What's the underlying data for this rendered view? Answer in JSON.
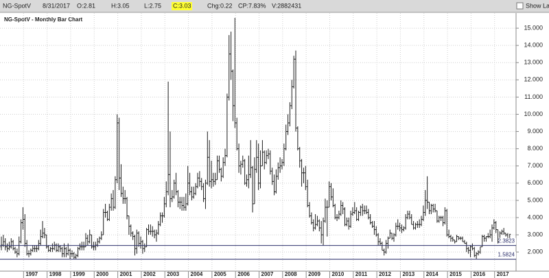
{
  "header": {
    "symbol": "NG-SpotV",
    "date": "8/31/2017",
    "open": "O:2.81",
    "high": "H:3.05",
    "low": "L:2.75",
    "close": "C:3.03",
    "change": "Chg:0.22",
    "change_pct": "CP:7.83%",
    "volume": "V:2882431",
    "checkbox": "Show La"
  },
  "chart_data": {
    "type": "ohlc",
    "title": "NG-SpotV - Monthly Bar Chart",
    "color": "#1a1a1a",
    "grid": true,
    "ylim": [
      0.89,
      15.88
    ],
    "yticks": [
      {
        "value": 2,
        "label": "2.000"
      },
      {
        "value": 3,
        "label": "3.000"
      },
      {
        "value": 4,
        "label": "4.000"
      },
      {
        "value": 5,
        "label": "5.000"
      },
      {
        "value": 6,
        "label": "6.000"
      },
      {
        "value": 7,
        "label": "7.000"
      },
      {
        "value": 8,
        "label": "8.000"
      },
      {
        "value": 9,
        "label": "9.000"
      },
      {
        "value": 10,
        "label": "10.000"
      },
      {
        "value": 11,
        "label": "11.000"
      },
      {
        "value": 12,
        "label": "12.000"
      },
      {
        "value": 13,
        "label": "13.000"
      },
      {
        "value": 14,
        "label": "14.000"
      },
      {
        "value": 15,
        "label": "15.000"
      }
    ],
    "hlines": [
      2.3823,
      1.5824
    ],
    "categories": [
      null,
      null,
      null,
      null,
      null,
      null,
      null,
      null,
      null,
      null,
      null,
      null,
      "1997",
      null,
      null,
      null,
      null,
      null,
      null,
      null,
      null,
      null,
      null,
      null,
      "1998",
      null,
      null,
      null,
      null,
      null,
      null,
      null,
      null,
      null,
      null,
      null,
      "1999",
      null,
      null,
      null,
      null,
      null,
      null,
      null,
      null,
      null,
      null,
      null,
      "2000",
      null,
      null,
      null,
      null,
      null,
      null,
      null,
      null,
      null,
      null,
      null,
      "2001",
      null,
      null,
      null,
      null,
      null,
      null,
      null,
      null,
      null,
      null,
      null,
      "2002",
      null,
      null,
      null,
      null,
      null,
      null,
      null,
      null,
      null,
      null,
      null,
      "2003",
      null,
      null,
      null,
      null,
      null,
      null,
      null,
      null,
      null,
      null,
      null,
      "2004",
      null,
      null,
      null,
      null,
      null,
      null,
      null,
      null,
      null,
      null,
      null,
      "2005",
      null,
      null,
      null,
      null,
      null,
      null,
      null,
      null,
      null,
      null,
      null,
      "2006",
      null,
      null,
      null,
      null,
      null,
      null,
      null,
      null,
      null,
      null,
      null,
      "2007",
      null,
      null,
      null,
      null,
      null,
      null,
      null,
      null,
      null,
      null,
      null,
      "2008",
      null,
      null,
      null,
      null,
      null,
      null,
      null,
      null,
      null,
      null,
      null,
      "2009",
      null,
      null,
      null,
      null,
      null,
      null,
      null,
      null,
      null,
      null,
      null,
      "2010",
      null,
      null,
      null,
      null,
      null,
      null,
      null,
      null,
      null,
      null,
      null,
      "2011",
      null,
      null,
      null,
      null,
      null,
      null,
      null,
      null,
      null,
      null,
      null,
      "2012",
      null,
      null,
      null,
      null,
      null,
      null,
      null,
      null,
      null,
      null,
      null,
      "2013",
      null,
      null,
      null,
      null,
      null,
      null,
      null,
      null,
      null,
      null,
      null,
      "2014",
      null,
      null,
      null,
      null,
      null,
      null,
      null,
      null,
      null,
      null,
      null,
      "2015",
      null,
      null,
      null,
      null,
      null,
      null,
      null,
      null,
      null,
      null,
      null,
      "2016",
      null,
      null,
      null,
      null,
      null,
      null,
      null,
      null,
      null,
      null,
      null,
      "2017",
      null,
      null,
      null,
      null,
      null,
      null,
      null
    ],
    "open": [
      2.3,
      2.4,
      2.6,
      2.3,
      2.2,
      2.3,
      2.6,
      2.2,
      2.0,
      1.9,
      2.6,
      3.7,
      3.9,
      2.5,
      1.9,
      1.9,
      2.1,
      2.2,
      2.2,
      2.2,
      2.5,
      2.9,
      3.1,
      3.0,
      2.3,
      2.1,
      2.2,
      2.2,
      2.4,
      2.1,
      2.3,
      2.2,
      1.9,
      2.2,
      1.9,
      2.1,
      1.9,
      1.9,
      1.7,
      1.8,
      2.2,
      2.3,
      2.3,
      2.3,
      2.8,
      2.6,
      3.0,
      2.3,
      2.3,
      2.4,
      2.6,
      2.8,
      3.0,
      4.3,
      4.3,
      3.9,
      4.6,
      5.1,
      4.6,
      6.2,
      9.5,
      6.3,
      5.4,
      5.1,
      5.1,
      4.1,
      3.5,
      3.1,
      2.9,
      2.2,
      3.1,
      2.5,
      2.6,
      2.2,
      2.3,
      3.3,
      3.2,
      3.2,
      3.2,
      3.0,
      3.1,
      3.6,
      4.1,
      4.1,
      4.8,
      5.5,
      6.5,
      5.1,
      5.2,
      6.0,
      5.5,
      4.9,
      4.9,
      4.7,
      4.6,
      4.8,
      6.0,
      5.5,
      5.2,
      5.4,
      5.8,
      6.3,
      6.1,
      5.8,
      5.1,
      6.0,
      7.5,
      6.1,
      6.2,
      6.1,
      6.2,
      7.3,
      6.8,
      6.4,
      7.2,
      7.6,
      11.0,
      13.5,
      12.5,
      10.5,
      9.5,
      8.0,
      7.0,
      7.1,
      7.3,
      6.0,
      6.2,
      6.5,
      6.9,
      4.8,
      6.8,
      7.5,
      6.0,
      7.0,
      7.8,
      7.2,
      7.6,
      7.7,
      6.7,
      6.1,
      5.5,
      6.4,
      6.9,
      7.0,
      7.2,
      8.0,
      9.0,
      9.5,
      10.5,
      11.6,
      13.2,
      9.2,
      8.0,
      7.3,
      6.6,
      6.6,
      5.8,
      4.7,
      4.1,
      3.7,
      3.4,
      3.6,
      3.8,
      3.4,
      3.0,
      3.8,
      4.6,
      4.6,
      5.8,
      5.2,
      4.7,
      4.0,
      4.0,
      4.2,
      4.7,
      4.5,
      3.6,
      3.8,
      3.5,
      4.2,
      4.3,
      4.4,
      3.9,
      4.3,
      4.6,
      4.4,
      4.4,
      4.3,
      4.0,
      3.7,
      3.5,
      3.3,
      3.0,
      2.6,
      2.5,
      2.1,
      2.0,
      2.5,
      2.8,
      3.1,
      2.8,
      3.0,
      3.5,
      3.5,
      3.4,
      3.3,
      3.4,
      4.0,
      4.2,
      4.0,
      3.6,
      3.4,
      3.6,
      3.6,
      3.6,
      3.9,
      4.3,
      5.0,
      4.9,
      4.4,
      4.7,
      4.5,
      4.4,
      3.8,
      4.0,
      4.0,
      3.7,
      4.4,
      3.0,
      2.9,
      2.8,
      2.7,
      2.6,
      2.9,
      2.8,
      2.8,
      2.6,
      2.5,
      2.2,
      2.1,
      2.3,
      2.2,
      1.8,
      1.9,
      2.0,
      2.3,
      2.9,
      2.8,
      2.9,
      2.9,
      3.0,
      3.4,
      3.7,
      3.3,
      2.6,
      3.1,
      3.2,
      3.1,
      3.0,
      2.81
    ],
    "high": [
      2.9,
      3.0,
      2.8,
      2.5,
      2.6,
      2.8,
      2.7,
      2.3,
      2.2,
      2.9,
      3.9,
      4.6,
      4.2,
      2.7,
      2.1,
      2.2,
      2.4,
      2.4,
      2.4,
      2.7,
      3.3,
      3.8,
      3.4,
      3.0,
      2.4,
      2.3,
      2.5,
      2.6,
      2.5,
      2.5,
      2.4,
      2.3,
      2.5,
      2.3,
      2.5,
      2.2,
      2.1,
      2.0,
      1.9,
      2.3,
      2.5,
      2.6,
      2.6,
      3.1,
      3.0,
      3.3,
      3.0,
      2.6,
      2.6,
      2.8,
      2.9,
      3.2,
      4.5,
      4.8,
      4.4,
      4.8,
      5.4,
      5.6,
      6.4,
      10.0,
      9.8,
      7.1,
      5.8,
      5.6,
      5.2,
      4.1,
      3.6,
      3.2,
      3.0,
      3.3,
      3.2,
      2.9,
      2.7,
      2.5,
      3.4,
      3.6,
      3.6,
      3.5,
      3.3,
      3.3,
      3.8,
      4.3,
      4.3,
      5.2,
      6.1,
      11.9,
      9.0,
      5.6,
      6.2,
      6.6,
      5.6,
      5.2,
      5.2,
      5.2,
      5.4,
      7.0,
      6.6,
      5.8,
      5.8,
      6.0,
      6.6,
      6.7,
      6.3,
      6.0,
      6.2,
      9.0,
      8.5,
      7.3,
      6.6,
      6.6,
      7.6,
      7.6,
      6.9,
      7.5,
      8.0,
      11.2,
      14.6,
      14.8,
      12.6,
      15.6,
      9.8,
      8.3,
      7.3,
      7.6,
      7.4,
      6.5,
      7.6,
      8.5,
      7.0,
      7.5,
      8.5,
      8.3,
      7.9,
      8.5,
      7.9,
      7.9,
      8.0,
      7.9,
      6.9,
      6.5,
      6.8,
      7.2,
      7.5,
      7.4,
      8.3,
      9.4,
      10.0,
      10.7,
      12.0,
      13.4,
      13.7,
      9.3,
      8.1,
      7.4,
      6.9,
      7.0,
      6.2,
      4.9,
      4.3,
      3.9,
      4.2,
      4.1,
      3.9,
      3.8,
      4.0,
      5.1,
      5.0,
      6.1,
      6.0,
      5.7,
      4.8,
      4.2,
      4.4,
      5.0,
      4.9,
      4.6,
      4.0,
      4.0,
      4.4,
      4.6,
      4.9,
      4.6,
      4.4,
      4.7,
      4.8,
      4.7,
      4.7,
      4.5,
      4.2,
      3.8,
      3.8,
      3.5,
      3.1,
      2.8,
      2.6,
      2.2,
      2.7,
      2.9,
      3.3,
      3.1,
      3.1,
      3.7,
      3.9,
      3.7,
      3.6,
      3.5,
      4.2,
      4.4,
      4.4,
      4.2,
      3.8,
      3.7,
      3.8,
      3.9,
      4.1,
      4.7,
      5.6,
      6.4,
      4.9,
      4.8,
      4.8,
      4.8,
      4.4,
      4.1,
      4.1,
      4.1,
      4.6,
      4.5,
      3.3,
      3.0,
      2.9,
      2.7,
      3.0,
      2.9,
      2.9,
      2.9,
      2.7,
      2.6,
      2.3,
      2.4,
      2.5,
      2.3,
      2.0,
      2.1,
      2.3,
      3.0,
      3.0,
      2.9,
      3.1,
      3.3,
      3.6,
      3.9,
      3.8,
      3.3,
      3.2,
      3.3,
      3.4,
      3.1,
      3.1,
      3.05
    ],
    "low": [
      2.1,
      2.3,
      2.1,
      2.0,
      2.1,
      2.2,
      2.1,
      1.9,
      1.7,
      1.8,
      2.5,
      3.3,
      2.3,
      1.8,
      1.7,
      1.8,
      2.0,
      2.0,
      2.0,
      2.1,
      2.4,
      2.8,
      2.8,
      2.2,
      2.0,
      2.0,
      2.0,
      2.1,
      2.0,
      2.0,
      2.0,
      1.7,
      1.7,
      1.7,
      1.8,
      1.6,
      1.7,
      1.6,
      1.6,
      1.7,
      2.1,
      2.1,
      2.1,
      2.3,
      2.4,
      2.5,
      2.2,
      2.1,
      2.1,
      2.3,
      2.5,
      2.7,
      3.0,
      4.0,
      3.8,
      3.8,
      4.4,
      4.4,
      4.5,
      6.0,
      5.6,
      5.2,
      4.8,
      4.8,
      3.9,
      3.0,
      2.9,
      2.7,
      1.8,
      1.9,
      2.3,
      2.2,
      1.9,
      2.0,
      2.3,
      3.0,
      3.0,
      2.9,
      2.8,
      2.6,
      3.0,
      3.5,
      3.7,
      4.0,
      4.6,
      5.3,
      4.6,
      4.9,
      5.1,
      5.3,
      4.6,
      4.5,
      4.4,
      4.4,
      4.4,
      4.7,
      5.3,
      5.0,
      5.1,
      5.3,
      5.7,
      5.8,
      5.6,
      4.9,
      4.5,
      5.9,
      5.8,
      5.7,
      5.8,
      5.9,
      6.2,
      6.6,
      6.1,
      6.3,
      7.0,
      7.5,
      10.8,
      12.0,
      9.6,
      9.2,
      7.9,
      6.6,
      6.5,
      6.9,
      5.9,
      5.8,
      5.7,
      6.3,
      4.3,
      4.8,
      6.6,
      5.6,
      5.7,
      7.0,
      6.8,
      7.1,
      7.4,
      6.5,
      5.9,
      5.3,
      5.4,
      6.2,
      6.6,
      6.8,
      7.0,
      7.9,
      8.8,
      9.3,
      10.3,
      11.5,
      9.0,
      7.9,
      6.9,
      5.8,
      6.0,
      5.6,
      4.6,
      4.0,
      3.6,
      3.2,
      3.3,
      3.5,
      3.2,
      2.5,
      2.4,
      3.7,
      2.9,
      4.6,
      5.0,
      4.6,
      3.9,
      3.8,
      3.9,
      4.1,
      4.2,
      3.5,
      3.5,
      3.3,
      3.4,
      4.1,
      4.2,
      3.8,
      3.8,
      4.1,
      4.1,
      4.2,
      4.2,
      3.9,
      3.6,
      3.4,
      3.0,
      2.9,
      2.4,
      2.4,
      2.1,
      1.8,
      1.9,
      2.2,
      2.8,
      2.7,
      2.6,
      2.9,
      3.3,
      3.2,
      3.1,
      3.2,
      3.3,
      3.9,
      3.9,
      3.6,
      3.3,
      3.3,
      3.4,
      3.4,
      3.5,
      3.8,
      4.1,
      4.5,
      4.2,
      4.2,
      4.3,
      4.3,
      3.7,
      3.7,
      3.8,
      3.5,
      3.6,
      2.9,
      2.8,
      2.6,
      2.6,
      2.5,
      2.6,
      2.7,
      2.7,
      2.6,
      2.5,
      2.0,
      1.9,
      1.7,
      2.1,
      1.7,
      1.6,
      1.8,
      1.9,
      2.3,
      2.6,
      2.6,
      2.8,
      2.8,
      2.6,
      3.3,
      3.1,
      2.5,
      2.6,
      3.0,
      3.0,
      2.9,
      2.8,
      2.75
    ],
    "close": [
      2.4,
      2.6,
      2.3,
      2.2,
      2.3,
      2.6,
      2.2,
      2.0,
      1.9,
      2.6,
      3.7,
      3.9,
      2.5,
      1.9,
      1.9,
      2.1,
      2.2,
      2.2,
      2.2,
      2.5,
      2.9,
      3.1,
      3.0,
      2.3,
      2.1,
      2.2,
      2.2,
      2.4,
      2.1,
      2.3,
      2.2,
      1.9,
      2.2,
      1.9,
      2.1,
      1.9,
      1.9,
      1.7,
      1.8,
      2.2,
      2.3,
      2.3,
      2.3,
      2.8,
      2.6,
      3.0,
      2.3,
      2.3,
      2.4,
      2.6,
      2.8,
      3.0,
      4.3,
      4.3,
      3.9,
      4.6,
      5.1,
      4.6,
      6.2,
      9.5,
      6.3,
      5.4,
      5.1,
      5.1,
      4.1,
      3.5,
      3.1,
      2.9,
      2.2,
      3.1,
      2.5,
      2.6,
      2.2,
      2.3,
      3.3,
      3.2,
      3.2,
      3.2,
      3.0,
      3.1,
      3.6,
      4.1,
      4.1,
      4.8,
      5.5,
      6.5,
      5.1,
      5.2,
      6.0,
      5.5,
      4.9,
      4.9,
      4.7,
      4.6,
      4.8,
      6.0,
      5.5,
      5.2,
      5.4,
      5.8,
      6.3,
      6.1,
      5.8,
      5.1,
      6.0,
      7.5,
      6.1,
      6.2,
      6.1,
      6.2,
      7.3,
      6.8,
      6.4,
      7.2,
      7.6,
      11.0,
      13.5,
      12.5,
      10.5,
      9.5,
      8.0,
      7.0,
      7.1,
      7.3,
      6.0,
      6.2,
      6.5,
      6.9,
      4.8,
      6.8,
      7.5,
      6.0,
      7.0,
      7.8,
      7.2,
      7.6,
      7.7,
      6.7,
      6.1,
      5.5,
      6.4,
      6.9,
      7.0,
      7.2,
      8.0,
      9.0,
      9.5,
      10.5,
      11.6,
      13.2,
      9.2,
      8.0,
      7.3,
      6.6,
      6.6,
      5.8,
      4.7,
      4.1,
      3.7,
      3.4,
      3.6,
      3.8,
      3.4,
      3.0,
      3.8,
      4.6,
      4.6,
      5.8,
      5.2,
      4.7,
      4.0,
      4.0,
      4.2,
      4.7,
      4.5,
      3.6,
      3.8,
      3.5,
      4.2,
      4.3,
      4.4,
      3.9,
      4.3,
      4.6,
      4.4,
      4.4,
      4.3,
      4.0,
      3.7,
      3.5,
      3.3,
      3.0,
      2.6,
      2.5,
      2.1,
      2.0,
      2.5,
      2.8,
      3.1,
      2.8,
      3.0,
      3.5,
      3.5,
      3.4,
      3.3,
      3.4,
      4.0,
      4.2,
      4.0,
      3.6,
      3.4,
      3.6,
      3.6,
      3.6,
      3.9,
      4.3,
      5.0,
      4.9,
      4.4,
      4.7,
      4.5,
      4.4,
      3.8,
      4.0,
      4.0,
      3.7,
      4.4,
      3.0,
      2.9,
      2.8,
      2.7,
      2.6,
      2.9,
      2.8,
      2.8,
      2.6,
      2.5,
      2.2,
      2.1,
      2.3,
      2.2,
      1.8,
      1.9,
      2.0,
      2.3,
      2.9,
      2.8,
      2.9,
      2.9,
      3.0,
      3.4,
      3.7,
      3.3,
      2.6,
      3.1,
      3.2,
      3.1,
      3.0,
      2.8,
      3.03
    ]
  }
}
